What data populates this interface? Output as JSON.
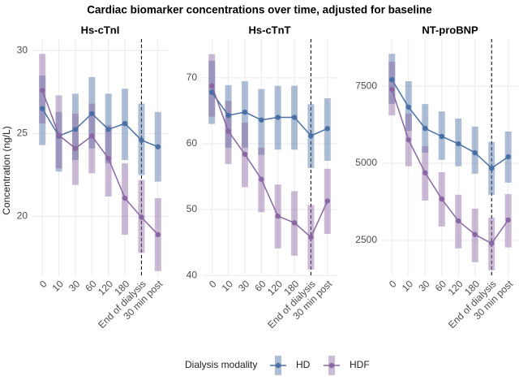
{
  "title": "Cardiac biomarker concentrations over time, adjusted for baseline",
  "y_label": "Concentration (ng/L)",
  "legend_title": "Dialysis modality",
  "chart_data": [
    {
      "type": "line",
      "title": "Hs-cTnI",
      "categories": [
        "0",
        "10",
        "30",
        "60",
        "120",
        "180",
        "End of dialysis",
        "30 min post"
      ],
      "vline_category": "End of dialysis",
      "ylim": [
        16.4,
        30.7
      ],
      "yticks": [
        20,
        25,
        30
      ],
      "grid": true,
      "series": [
        {
          "name": "HD",
          "color": "#4a6fa5",
          "values": [
            26.5,
            24.85,
            25.25,
            26.2,
            25.25,
            25.6,
            24.6,
            24.2
          ],
          "lower": [
            24.3,
            22.7,
            23.4,
            24.1,
            23.2,
            23.4,
            22.5,
            22.1
          ],
          "upper": [
            28.5,
            26.3,
            27.4,
            28.4,
            27.4,
            27.7,
            26.8,
            26.3
          ]
        },
        {
          "name": "HDF",
          "color": "#8a67a3",
          "values": [
            27.6,
            24.9,
            24.1,
            24.85,
            23.5,
            21.1,
            19.95,
            18.9
          ],
          "lower": [
            25.6,
            22.9,
            21.9,
            22.6,
            21.2,
            18.9,
            17.8,
            16.7
          ],
          "upper": [
            29.8,
            27.3,
            26.2,
            26.8,
            25.5,
            23.2,
            22.2,
            21.1
          ]
        }
      ]
    },
    {
      "type": "line",
      "title": "Hs-cTnT",
      "categories": [
        "0",
        "10",
        "30",
        "60",
        "120",
        "180",
        "End of dialysis",
        "30 min post"
      ],
      "vline_category": "End of dialysis",
      "ylim": [
        39.9,
        75.9
      ],
      "yticks": [
        40,
        50,
        60,
        70
      ],
      "grid": true,
      "series": [
        {
          "name": "HD",
          "color": "#4a6fa5",
          "values": [
            67.8,
            64.3,
            64.8,
            63.6,
            64.0,
            64.0,
            61.2,
            62.3
          ],
          "lower": [
            63.0,
            59.4,
            59.4,
            58.3,
            59.1,
            59.1,
            56.3,
            57.4
          ],
          "upper": [
            72.6,
            68.9,
            69.5,
            68.3,
            68.8,
            68.8,
            66.0,
            66.9
          ]
        },
        {
          "name": "HDF",
          "color": "#8a67a3",
          "values": [
            68.8,
            61.9,
            58.4,
            54.6,
            49.0,
            48.0,
            45.8,
            51.3
          ],
          "lower": [
            64.1,
            56.9,
            53.4,
            49.6,
            44.1,
            43.0,
            40.9,
            46.3
          ],
          "upper": [
            73.6,
            66.5,
            63.2,
            59.4,
            53.8,
            52.8,
            50.7,
            56.2
          ]
        }
      ]
    },
    {
      "type": "line",
      "title": "NT-proBNP",
      "categories": [
        "0",
        "10",
        "30",
        "60",
        "120",
        "180",
        "End of dialysis",
        "30 min post"
      ],
      "vline_category": "End of dialysis",
      "ylim": [
        1340,
        9030
      ],
      "yticks": [
        2500,
        5000,
        7500
      ],
      "grid": true,
      "series": [
        {
          "name": "HD",
          "color": "#4a6fa5",
          "values": [
            7710,
            6820,
            6130,
            5870,
            5630,
            5340,
            4840,
            5210
          ],
          "lower": [
            6920,
            6050,
            5340,
            5110,
            4900,
            4660,
            3980,
            4370
          ],
          "upper": [
            8550,
            7660,
            6920,
            6680,
            6450,
            6190,
            5690,
            6030
          ]
        },
        {
          "name": "HDF",
          "color": "#8a67a3",
          "values": [
            7390,
            5760,
            4690,
            3840,
            3130,
            2690,
            2400,
            3160
          ],
          "lower": [
            6550,
            4900,
            3790,
            2950,
            2240,
            1790,
            1530,
            2270
          ],
          "upper": [
            8290,
            6610,
            5550,
            4710,
            3980,
            3530,
            3240,
            4000
          ]
        }
      ]
    }
  ]
}
